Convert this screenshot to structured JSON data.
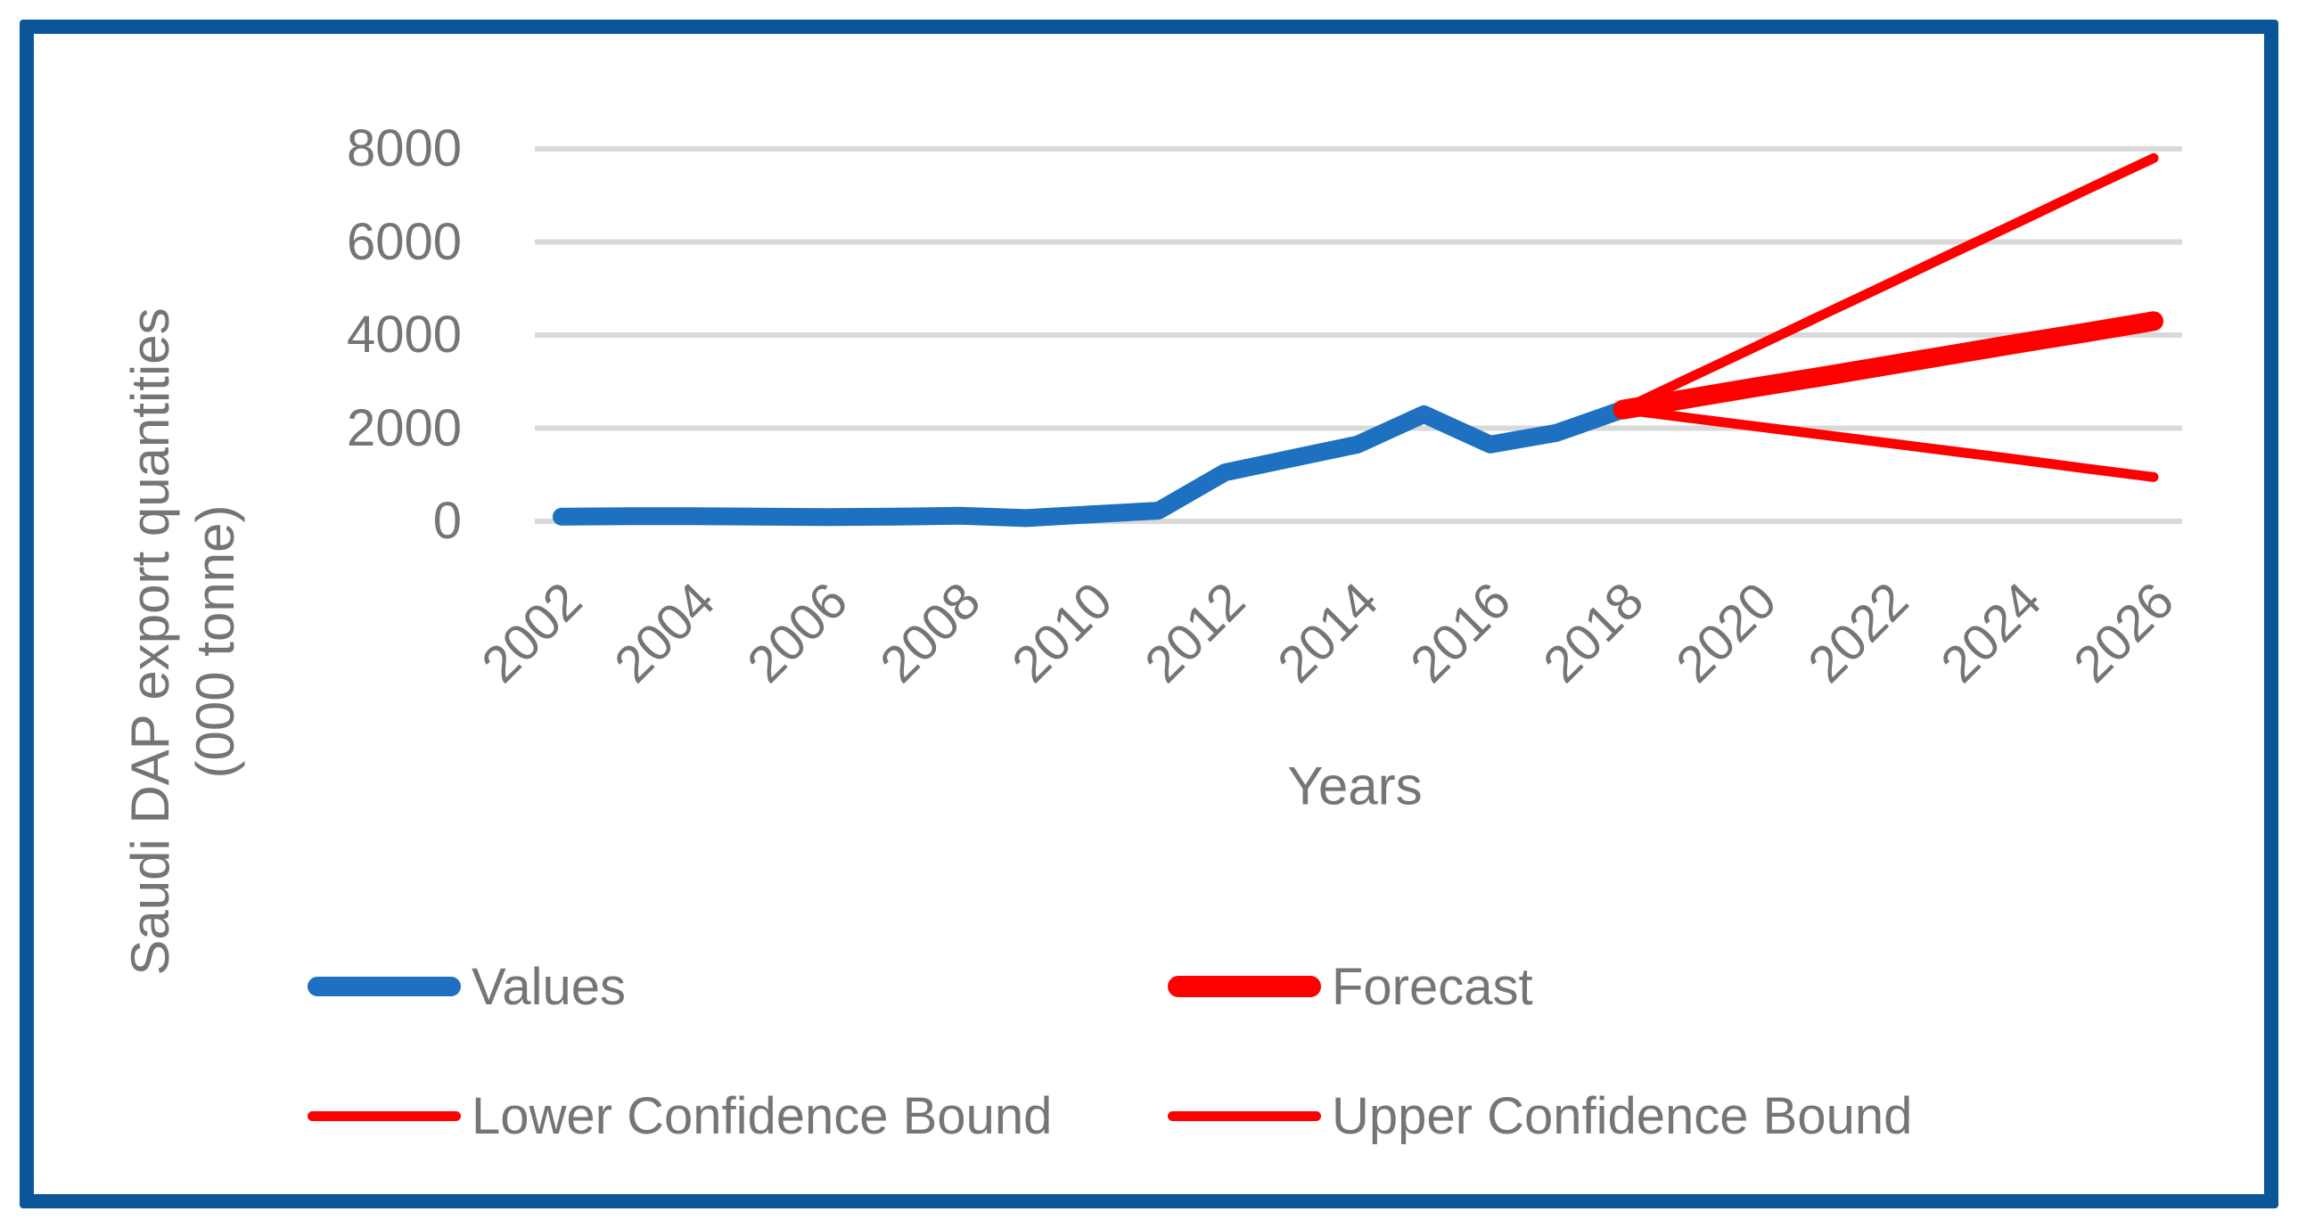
{
  "colors": {
    "frame_border": "#0B5696",
    "series_blue": "#1E70C1",
    "series_red": "#FF0000",
    "gridline": "#D9D9D9",
    "text_gray": "#757575"
  },
  "axes": {
    "y_title_line1": "Saudi DAP export quantities",
    "y_title_line2": "(000 tonne)",
    "x_title": "Years"
  },
  "legend": {
    "row1": [
      {
        "label": "Values",
        "swatch": "thick-blue"
      },
      {
        "label": "Forecast",
        "swatch": "thick-red"
      }
    ],
    "row2": [
      {
        "label": "Lower Confidence Bound",
        "swatch": "thin-red"
      },
      {
        "label": "Upper Confidence Bound",
        "swatch": "thin-red"
      }
    ]
  },
  "chart_data": {
    "type": "line",
    "title": "",
    "xlabel": "Years",
    "ylabel": "Saudi DAP export quantities (000 tonne)",
    "xlim": [
      2002,
      2026
    ],
    "ylim": [
      0,
      8000
    ],
    "x_ticks": [
      2002,
      2004,
      2006,
      2008,
      2010,
      2012,
      2014,
      2016,
      2018,
      2020,
      2022,
      2024,
      2026
    ],
    "y_ticks": [
      0,
      2000,
      4000,
      6000,
      8000
    ],
    "grid": "horizontal",
    "legend_position": "bottom",
    "series": [
      {
        "name": "Values",
        "color": "#1E70C1",
        "stroke_width": 20,
        "x": [
          2002,
          2003,
          2004,
          2005,
          2006,
          2007,
          2008,
          2009,
          2010,
          2011,
          2012,
          2013,
          2014,
          2015,
          2016,
          2017,
          2018
        ],
        "values": [
          100,
          110,
          110,
          100,
          90,
          100,
          120,
          70,
          150,
          230,
          1050,
          1350,
          1650,
          2300,
          1650,
          1900,
          2400
        ]
      },
      {
        "name": "Forecast",
        "color": "#FF0000",
        "stroke_width": 22,
        "x": [
          2018,
          2019,
          2020,
          2021,
          2022,
          2023,
          2024,
          2025,
          2026
        ],
        "values": [
          2400,
          2640,
          2880,
          3110,
          3350,
          3590,
          3830,
          4060,
          4300
        ]
      },
      {
        "name": "Lower Confidence Bound",
        "color": "#FF0000",
        "stroke_width": 11,
        "x": [
          2018,
          2019,
          2020,
          2021,
          2022,
          2023,
          2024,
          2025,
          2026
        ],
        "values": [
          2400,
          2220,
          2040,
          1860,
          1680,
          1500,
          1320,
          1130,
          950
        ]
      },
      {
        "name": "Upper Confidence Bound",
        "color": "#FF0000",
        "stroke_width": 11,
        "x": [
          2018,
          2019,
          2020,
          2021,
          2022,
          2023,
          2024,
          2025,
          2026
        ],
        "values": [
          2400,
          3080,
          3750,
          4430,
          5100,
          5780,
          6450,
          7130,
          7800
        ]
      }
    ]
  }
}
